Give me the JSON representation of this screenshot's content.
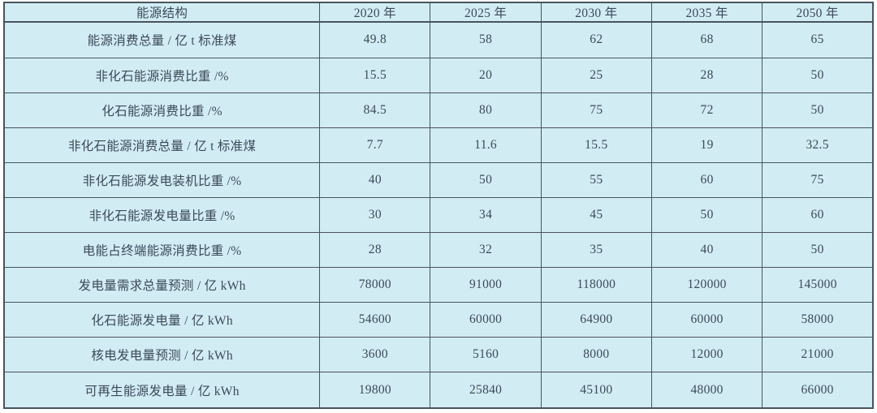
{
  "colors": {
    "page_bg": "#ffffff",
    "cell_bg": "#d2ecf4",
    "border": "#48545d",
    "text": "#3b4a59"
  },
  "table": {
    "header": [
      "能源结构",
      "2020 年",
      "2025 年",
      "2030 年",
      "2035 年",
      "2050 年"
    ],
    "rows": [
      {
        "label": "能源消费总量 / 亿 t 标准煤",
        "values": [
          "49.8",
          "58",
          "62",
          "68",
          "65"
        ]
      },
      {
        "label": "非化石能源消费比重 /%",
        "values": [
          "15.5",
          "20",
          "25",
          "28",
          "50"
        ]
      },
      {
        "label": "化石能源消费比重 /%",
        "values": [
          "84.5",
          "80",
          "75",
          "72",
          "50"
        ]
      },
      {
        "label": "非化石能源消费总量 / 亿 t 标准煤",
        "values": [
          "7.7",
          "11.6",
          "15.5",
          "19",
          "32.5"
        ]
      },
      {
        "label": "非化石能源发电装机比重 /%",
        "values": [
          "40",
          "50",
          "55",
          "60",
          "75"
        ]
      },
      {
        "label": "非化石能源发电量比重 /%",
        "values": [
          "30",
          "34",
          "45",
          "50",
          "60"
        ]
      },
      {
        "label": "电能占终端能源消费比重 /%",
        "values": [
          "28",
          "32",
          "35",
          "40",
          "50"
        ]
      },
      {
        "label": "发电量需求总量预测 / 亿 kWh",
        "values": [
          "78000",
          "91000",
          "118000",
          "120000",
          "145000"
        ]
      },
      {
        "label": "化石能源发电量 / 亿 kWh",
        "values": [
          "54600",
          "60000",
          "64900",
          "60000",
          "58000"
        ]
      },
      {
        "label": "核电发电量预测 / 亿 kWh",
        "values": [
          "3600",
          "5160",
          "8000",
          "12000",
          "21000"
        ]
      },
      {
        "label": "可再生能源发电量 / 亿 kWh",
        "values": [
          "19800",
          "25840",
          "45100",
          "48000",
          "66000"
        ]
      }
    ]
  },
  "chart_data": {
    "type": "table",
    "title": "",
    "columns": [
      "能源结构",
      "2020 年",
      "2025 年",
      "2030 年",
      "2035 年",
      "2050 年"
    ],
    "rows": [
      [
        "能源消费总量 / 亿 t 标准煤",
        49.8,
        58,
        62,
        68,
        65
      ],
      [
        "非化石能源消费比重 /%",
        15.5,
        20,
        25,
        28,
        50
      ],
      [
        "化石能源消费比重 /%",
        84.5,
        80,
        75,
        72,
        50
      ],
      [
        "非化石能源消费总量 / 亿 t 标准煤",
        7.7,
        11.6,
        15.5,
        19,
        32.5
      ],
      [
        "非化石能源发电装机比重 /%",
        40,
        50,
        55,
        60,
        75
      ],
      [
        "非化石能源发电量比重 /%",
        30,
        34,
        45,
        50,
        60
      ],
      [
        "电能占终端能源消费比重 /%",
        28,
        32,
        35,
        40,
        50
      ],
      [
        "发电量需求总量预测 / 亿 kWh",
        78000,
        91000,
        118000,
        120000,
        145000
      ],
      [
        "化石能源发电量 / 亿 kWh",
        54600,
        60000,
        64900,
        60000,
        58000
      ],
      [
        "核电发电量预测 / 亿 kWh",
        3600,
        5160,
        8000,
        12000,
        21000
      ],
      [
        "可再生能源发电量 / 亿 kWh",
        19800,
        25840,
        45100,
        48000,
        66000
      ]
    ]
  }
}
